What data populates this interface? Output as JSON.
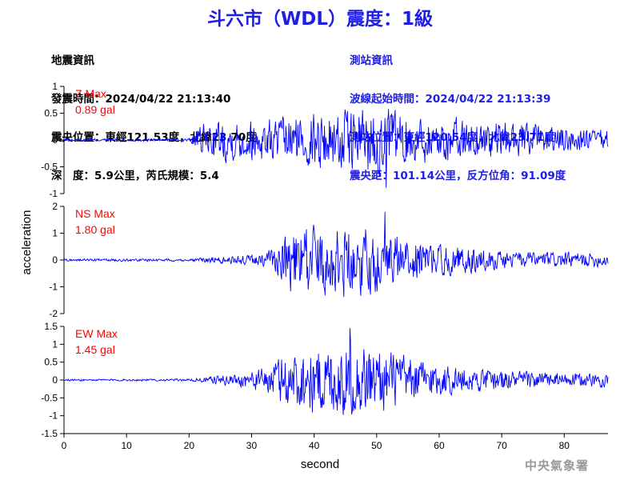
{
  "title": "斗六市（WDL）震度：1級",
  "quake_info": {
    "heading": "地震資訊",
    "origin_time": "發震時間：2024/04/22 21:13:40",
    "epicenter": "震央位置：東經121.53度，北緯23.70度",
    "depth_magnitude": "深　度：5.9公里，芮氏規模：5.4"
  },
  "station_info": {
    "heading": "測站資訊",
    "wave_start": "波線起始時間：2024/04/22 21:13:39",
    "location": "測站位置：東經120.54度，北緯23.71度",
    "distance": "震央距：101.14公里，反方位角：91.09度"
  },
  "agency": "中央氣象署",
  "colors": {
    "trace": "#0000ff",
    "max_label": "#ff0000",
    "title": "#1e1ee6",
    "agency": "#9a9a9a"
  },
  "chart_data": [
    {
      "type": "line",
      "component": "Z",
      "max_label": "Z Max",
      "max_value": "0.89 gal",
      "ylim": [
        -1,
        1
      ],
      "yticks": [
        "1",
        "0.5",
        "0",
        "-0.5",
        "-1"
      ],
      "xlim": [
        0,
        87
      ],
      "envelope": {
        "t": [
          0,
          20,
          22,
          25,
          30,
          35,
          40,
          45,
          50,
          55,
          60,
          65,
          70,
          75,
          80,
          87
        ],
        "amplitude": [
          0.03,
          0.03,
          0.3,
          0.4,
          0.4,
          0.45,
          0.55,
          0.6,
          0.7,
          0.5,
          0.45,
          0.4,
          0.35,
          0.3,
          0.25,
          0.2
        ]
      },
      "peak": {
        "t": 51.5,
        "value": -0.89
      }
    },
    {
      "type": "line",
      "component": "NS",
      "max_label": "NS Max",
      "max_value": "1.80 gal",
      "ylim": [
        -2,
        2
      ],
      "yticks": [
        "2",
        "1",
        "0",
        "-1",
        "-2"
      ],
      "xlim": [
        0,
        87
      ],
      "envelope": {
        "t": [
          0,
          20,
          25,
          30,
          34,
          36,
          40,
          45,
          50,
          55,
          60,
          65,
          70,
          75,
          80,
          87
        ],
        "amplitude": [
          0.05,
          0.05,
          0.15,
          0.2,
          0.5,
          1.2,
          1.3,
          1.4,
          1.2,
          0.8,
          0.6,
          0.5,
          0.35,
          0.3,
          0.3,
          0.25
        ]
      },
      "peak": {
        "t": 51.3,
        "value": 1.8
      }
    },
    {
      "type": "line",
      "component": "EW",
      "max_label": "EW Max",
      "max_value": "1.45 gal",
      "ylim": [
        -1.5,
        1.5
      ],
      "yticks": [
        "1.5",
        "1",
        "0.5",
        "0",
        "-0.5",
        "-1",
        "-1.5"
      ],
      "xlim": [
        0,
        87
      ],
      "envelope": {
        "t": [
          0,
          20,
          23,
          28,
          32,
          36,
          40,
          45,
          50,
          55,
          60,
          65,
          70,
          75,
          80,
          87
        ],
        "amplitude": [
          0.03,
          0.03,
          0.1,
          0.2,
          0.35,
          0.9,
          1.0,
          1.1,
          1.0,
          0.7,
          0.5,
          0.35,
          0.3,
          0.25,
          0.2,
          0.2
        ]
      },
      "peak": {
        "t": 45.7,
        "value": 1.45
      }
    }
  ],
  "axes": {
    "ylabel": "acceleration",
    "xlabel": "second",
    "xticks": [
      "0",
      "10",
      "20",
      "30",
      "40",
      "50",
      "60",
      "70",
      "80"
    ]
  }
}
